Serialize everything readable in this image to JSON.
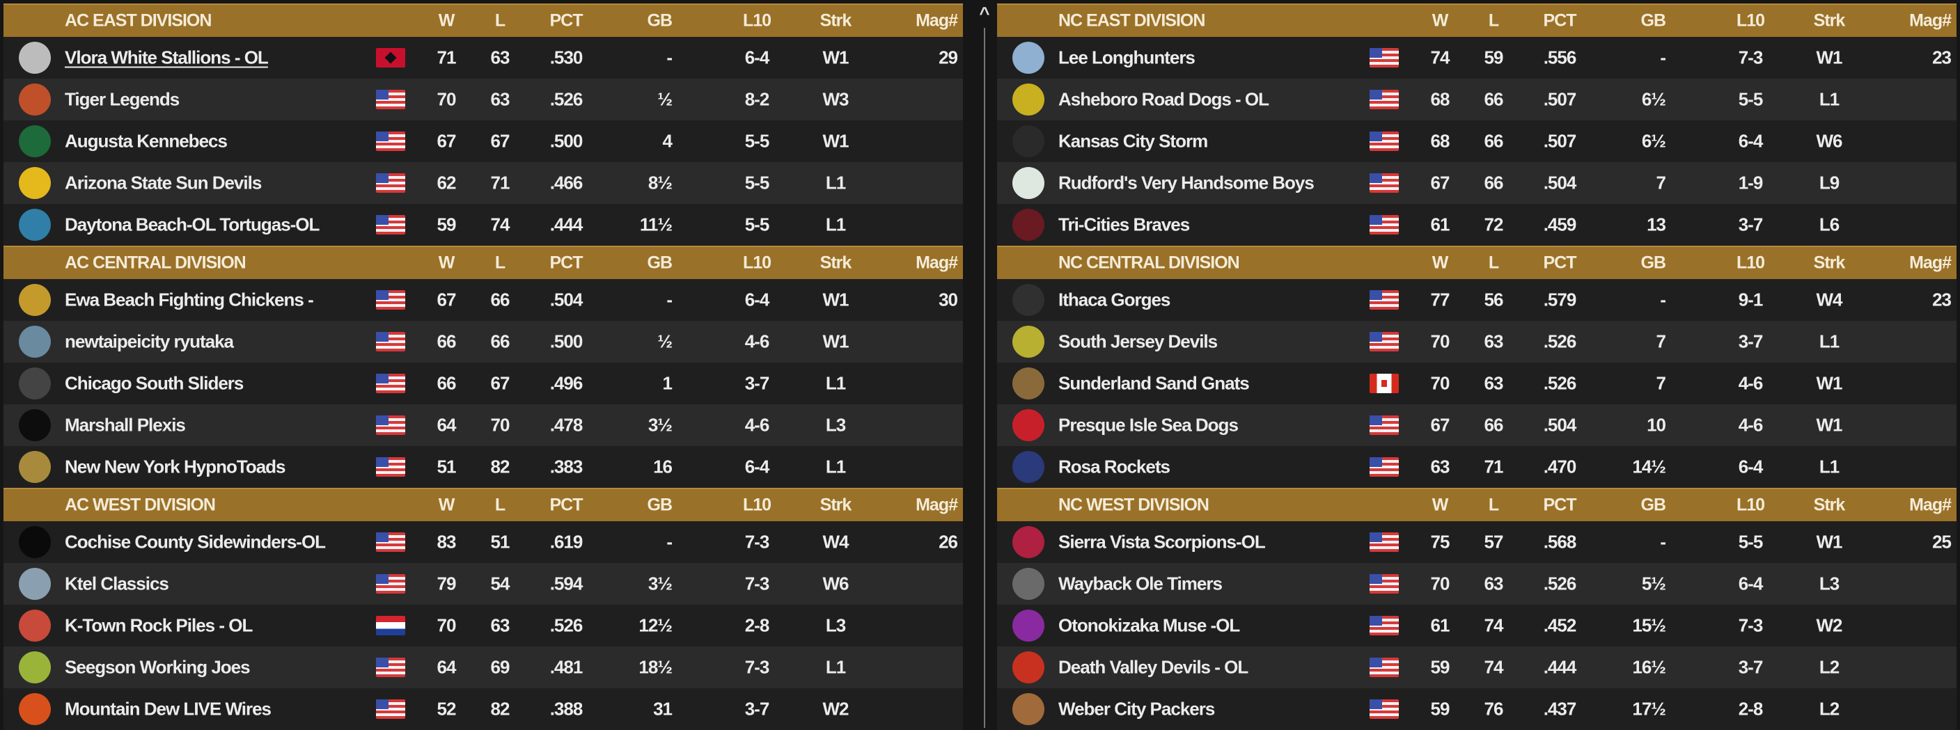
{
  "columns": {
    "w": "W",
    "l": "L",
    "pct": "PCT",
    "gb": "GB",
    "l10": "L10",
    "strk": "Strk",
    "mag": "Mag#"
  },
  "colors": {
    "header": "#9a7129",
    "row_odd": "#1f1f1f",
    "row_even": "#2b2b2b"
  },
  "scrollbar": {
    "arrow": "^"
  },
  "panels": [
    {
      "divisions": [
        {
          "title": "AC EAST DIVISION",
          "teams": [
            {
              "name": "Vlora White Stallions - OL",
              "flag": "al",
              "logo": "#bcbcbc",
              "underline": true,
              "w": "71",
              "l": "63",
              "pct": ".530",
              "gb": "-",
              "l10": "6-4",
              "strk": "W1",
              "mag": "29"
            },
            {
              "name": "Tiger Legends",
              "flag": "us",
              "logo": "#c0502a",
              "w": "70",
              "l": "63",
              "pct": ".526",
              "gb": "½",
              "l10": "8-2",
              "strk": "W3",
              "mag": ""
            },
            {
              "name": "Augusta Kennebecs",
              "flag": "us",
              "logo": "#1d6a3a",
              "w": "67",
              "l": "67",
              "pct": ".500",
              "gb": "4",
              "l10": "5-5",
              "strk": "W1",
              "mag": ""
            },
            {
              "name": "Arizona State Sun Devils",
              "flag": "us",
              "logo": "#e5b81c",
              "w": "62",
              "l": "71",
              "pct": ".466",
              "gb": "8½",
              "l10": "5-5",
              "strk": "L1",
              "mag": ""
            },
            {
              "name": "Daytona Beach-OL Tortugas-OL",
              "flag": "us",
              "logo": "#2f7fa8",
              "w": "59",
              "l": "74",
              "pct": ".444",
              "gb": "11½",
              "l10": "5-5",
              "strk": "L1",
              "mag": ""
            }
          ]
        },
        {
          "title": "AC CENTRAL DIVISION",
          "teams": [
            {
              "name": "Ewa Beach Fighting Chickens -",
              "flag": "us",
              "logo": "#c49a2c",
              "w": "67",
              "l": "66",
              "pct": ".504",
              "gb": "-",
              "l10": "6-4",
              "strk": "W1",
              "mag": "30"
            },
            {
              "name": "newtaipeicity ryutaka",
              "flag": "us",
              "logo": "#6a8aa0",
              "w": "66",
              "l": "66",
              "pct": ".500",
              "gb": "½",
              "l10": "4-6",
              "strk": "W1",
              "mag": ""
            },
            {
              "name": "Chicago South Sliders",
              "flag": "us",
              "logo": "#444444",
              "w": "66",
              "l": "67",
              "pct": ".496",
              "gb": "1",
              "l10": "3-7",
              "strk": "L1",
              "mag": ""
            },
            {
              "name": "Marshall Plexis",
              "flag": "us",
              "logo": "#0d0d0d",
              "w": "64",
              "l": "70",
              "pct": ".478",
              "gb": "3½",
              "l10": "4-6",
              "strk": "L3",
              "mag": ""
            },
            {
              "name": "New New York HypnoToads",
              "flag": "us",
              "logo": "#a88a3c",
              "w": "51",
              "l": "82",
              "pct": ".383",
              "gb": "16",
              "l10": "6-4",
              "strk": "L1",
              "mag": ""
            }
          ]
        },
        {
          "title": "AC WEST DIVISION",
          "teams": [
            {
              "name": "Cochise County Sidewinders-OL",
              "flag": "us",
              "logo": "#0a0a0a",
              "w": "83",
              "l": "51",
              "pct": ".619",
              "gb": "-",
              "l10": "7-3",
              "strk": "W4",
              "mag": "26"
            },
            {
              "name": "Ktel Classics",
              "flag": "us",
              "logo": "#8aa0b0",
              "w": "79",
              "l": "54",
              "pct": ".594",
              "gb": "3½",
              "l10": "7-3",
              "strk": "W6",
              "mag": ""
            },
            {
              "name": "K-Town Rock Piles - OL",
              "flag": "hr",
              "logo": "#c84a3a",
              "w": "70",
              "l": "63",
              "pct": ".526",
              "gb": "12½",
              "l10": "2-8",
              "strk": "L3",
              "mag": ""
            },
            {
              "name": "Seegson Working Joes",
              "flag": "us",
              "logo": "#9ab43a",
              "w": "64",
              "l": "69",
              "pct": ".481",
              "gb": "18½",
              "l10": "7-3",
              "strk": "L1",
              "mag": ""
            },
            {
              "name": "Mountain Dew LIVE Wires",
              "flag": "us",
              "logo": "#d8501c",
              "w": "52",
              "l": "82",
              "pct": ".388",
              "gb": "31",
              "l10": "3-7",
              "strk": "W2",
              "mag": ""
            }
          ]
        }
      ]
    },
    {
      "divisions": [
        {
          "title": "NC EAST DIVISION",
          "teams": [
            {
              "name": "Lee Longhunters",
              "flag": "us",
              "logo": "#8fb0d0",
              "w": "74",
              "l": "59",
              "pct": ".556",
              "gb": "-",
              "l10": "7-3",
              "strk": "W1",
              "mag": "23"
            },
            {
              "name": "Asheboro Road Dogs - OL",
              "flag": "us",
              "logo": "#c8b020",
              "w": "68",
              "l": "66",
              "pct": ".507",
              "gb": "6½",
              "l10": "5-5",
              "strk": "L1",
              "mag": ""
            },
            {
              "name": "Kansas City Storm",
              "flag": "us",
              "logo": "#2a2a2a",
              "w": "68",
              "l": "66",
              "pct": ".507",
              "gb": "6½",
              "l10": "6-4",
              "strk": "W6",
              "mag": ""
            },
            {
              "name": "Rudford's Very Handsome Boys",
              "flag": "us",
              "logo": "#dfe8e0",
              "w": "67",
              "l": "66",
              "pct": ".504",
              "gb": "7",
              "l10": "1-9",
              "strk": "L9",
              "mag": ""
            },
            {
              "name": "Tri-Cities Braves",
              "flag": "us",
              "logo": "#6a1a22",
              "w": "61",
              "l": "72",
              "pct": ".459",
              "gb": "13",
              "l10": "3-7",
              "strk": "L6",
              "mag": ""
            }
          ]
        },
        {
          "title": "NC CENTRAL DIVISION",
          "teams": [
            {
              "name": "Ithaca Gorges",
              "flag": "us",
              "logo": "#303030",
              "w": "77",
              "l": "56",
              "pct": ".579",
              "gb": "-",
              "l10": "9-1",
              "strk": "W4",
              "mag": "23"
            },
            {
              "name": "South Jersey Devils",
              "flag": "us",
              "logo": "#b8b030",
              "w": "70",
              "l": "63",
              "pct": ".526",
              "gb": "7",
              "l10": "3-7",
              "strk": "L1",
              "mag": ""
            },
            {
              "name": "Sunderland Sand Gnats",
              "flag": "ca",
              "logo": "#8a6a3a",
              "w": "70",
              "l": "63",
              "pct": ".526",
              "gb": "7",
              "l10": "4-6",
              "strk": "W1",
              "mag": ""
            },
            {
              "name": "Presque Isle Sea Dogs",
              "flag": "us",
              "logo": "#c8202a",
              "w": "67",
              "l": "66",
              "pct": ".504",
              "gb": "10",
              "l10": "4-6",
              "strk": "W1",
              "mag": ""
            },
            {
              "name": "Rosa Rockets",
              "flag": "us",
              "logo": "#2a3a7a",
              "w": "63",
              "l": "71",
              "pct": ".470",
              "gb": "14½",
              "l10": "6-4",
              "strk": "L1",
              "mag": ""
            }
          ]
        },
        {
          "title": "NC WEST DIVISION",
          "teams": [
            {
              "name": "Sierra Vista Scorpions-OL",
              "flag": "us",
              "logo": "#b02040",
              "w": "75",
              "l": "57",
              "pct": ".568",
              "gb": "-",
              "l10": "5-5",
              "strk": "W1",
              "mag": "25"
            },
            {
              "name": "Wayback Ole Timers",
              "flag": "us",
              "logo": "#6a6a6a",
              "w": "70",
              "l": "63",
              "pct": ".526",
              "gb": "5½",
              "l10": "6-4",
              "strk": "L3",
              "mag": ""
            },
            {
              "name": "Otonokizaka Muse -OL",
              "flag": "us",
              "logo": "#8a2aa0",
              "w": "61",
              "l": "74",
              "pct": ".452",
              "gb": "15½",
              "l10": "7-3",
              "strk": "W2",
              "mag": ""
            },
            {
              "name": "Death Valley Devils - OL",
              "flag": "us",
              "logo": "#c83020",
              "w": "59",
              "l": "74",
              "pct": ".444",
              "gb": "16½",
              "l10": "3-7",
              "strk": "L2",
              "mag": ""
            },
            {
              "name": "Weber City Packers",
              "flag": "us",
              "logo": "#a06a3a",
              "w": "59",
              "l": "76",
              "pct": ".437",
              "gb": "17½",
              "l10": "2-8",
              "strk": "L2",
              "mag": ""
            }
          ]
        }
      ]
    }
  ]
}
